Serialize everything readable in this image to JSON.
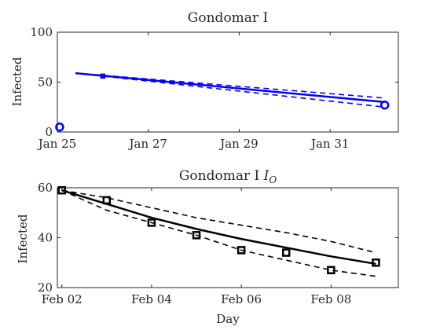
{
  "chart_data": [
    {
      "type": "line",
      "title": "Gondomar I",
      "ylabel": "Infected",
      "xlabel": "",
      "x_ticks": [
        "Jan 25",
        "Jan 27",
        "Jan 29",
        "Jan 31"
      ],
      "x_tick_days": [
        0,
        2,
        4,
        6
      ],
      "xlim_days": [
        0,
        7.5
      ],
      "ylim": [
        0,
        100
      ],
      "y_ticks": [
        0,
        50,
        100
      ],
      "color": "#0000ff",
      "series": [
        {
          "role": "model",
          "style": "solid",
          "x": [
            0.4,
            7.2
          ],
          "y": [
            59,
            30
          ]
        },
        {
          "role": "upper-bound",
          "style": "dashed",
          "x": [
            0.4,
            7.2
          ],
          "y": [
            59,
            34
          ]
        },
        {
          "role": "lower-bound",
          "style": "dashed",
          "x": [
            0.4,
            7.2
          ],
          "y": [
            59,
            25
          ]
        },
        {
          "role": "observed",
          "style": "markers",
          "marker": "circle",
          "x": [
            0.05,
            7.2
          ],
          "y": [
            5,
            27
          ]
        },
        {
          "role": "marker-small",
          "style": "markers",
          "marker": "square",
          "x": [
            1.0
          ],
          "y": [
            56
          ]
        }
      ]
    },
    {
      "type": "line",
      "title": "Gondomar I",
      "title_subscript": "O",
      "ylabel": "Infected",
      "xlabel": "Day",
      "x_ticks": [
        "Feb 02",
        "Feb 04",
        "Feb 06",
        "Feb 08"
      ],
      "x_tick_days": [
        0,
        2,
        4,
        6
      ],
      "xlim_days": [
        -0.1,
        7.5
      ],
      "ylim": [
        20,
        60
      ],
      "y_ticks": [
        20,
        40,
        60
      ],
      "color": "#000000",
      "series": [
        {
          "role": "model",
          "style": "solid",
          "x": [
            0,
            1,
            2,
            3,
            4,
            5,
            6,
            7
          ],
          "y": [
            59,
            53.5,
            48,
            43.5,
            39.5,
            36,
            32.5,
            29.5
          ]
        },
        {
          "role": "upper-bound",
          "style": "dashed",
          "x": [
            0,
            1,
            2,
            3,
            4,
            5,
            6,
            7
          ],
          "y": [
            59,
            56,
            52,
            48,
            45,
            42,
            38.5,
            34
          ]
        },
        {
          "role": "lower-bound",
          "style": "dashed",
          "x": [
            0,
            1,
            2,
            3,
            4,
            5,
            6,
            7
          ],
          "y": [
            59,
            51,
            46,
            41,
            35,
            31,
            27,
            24.5
          ]
        },
        {
          "role": "observed",
          "style": "markers",
          "marker": "square",
          "x": [
            0,
            1,
            2,
            3,
            4,
            5,
            6,
            7
          ],
          "y": [
            59,
            55,
            46,
            41,
            35,
            34,
            27,
            30
          ]
        }
      ]
    }
  ]
}
